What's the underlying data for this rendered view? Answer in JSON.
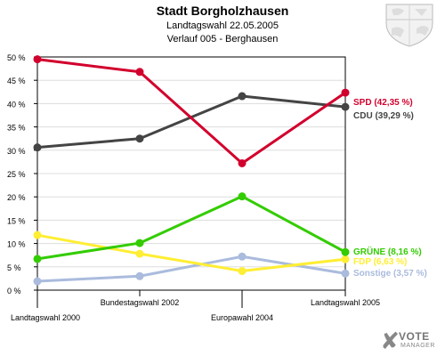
{
  "header": {
    "title": "Stadt Borgholzhausen",
    "subtitle1": "Landtagswahl 22.05.2005",
    "subtitle2": "Verlauf 005 - Berghausen"
  },
  "logo": {
    "line1": "VOTE",
    "line2": "MANAGER"
  },
  "colors": {
    "background": "#ffffff",
    "axis": "#000000",
    "grid": "#dddddd"
  },
  "chart_data": {
    "type": "line",
    "categories": [
      "Landtagswahl 2000",
      "Bundestagswahl 2002",
      "Europawahl 2004",
      "Landtagswahl 2005"
    ],
    "ylim": [
      0,
      50
    ],
    "yticks": [
      "0 %",
      "5 %",
      "10 %",
      "15 %",
      "20 %",
      "25 %",
      "30 %",
      "35 %",
      "40 %",
      "45 %",
      "50 %"
    ],
    "grid": "horizontal",
    "series": [
      {
        "name": "SPD",
        "label": "SPD (42,35 %)",
        "color": "#d2002d",
        "values": [
          49.5,
          46.8,
          27.2,
          42.35
        ]
      },
      {
        "name": "CDU",
        "label": "CDU (39,29 %)",
        "color": "#444444",
        "values": [
          30.6,
          32.5,
          41.6,
          39.29
        ]
      },
      {
        "name": "GRÜNE",
        "label": "GRÜNE (8,16 %)",
        "color": "#33cc00",
        "values": [
          6.7,
          10.1,
          20.1,
          8.16
        ]
      },
      {
        "name": "FDP",
        "label": "FDP (6,63 %)",
        "color": "#ffee33",
        "values": [
          11.8,
          7.8,
          4.1,
          6.63
        ]
      },
      {
        "name": "Sonstige",
        "label": "Sonstige (3,57 %)",
        "color": "#aabbdd",
        "values": [
          1.9,
          3.0,
          7.2,
          3.57
        ]
      }
    ]
  }
}
